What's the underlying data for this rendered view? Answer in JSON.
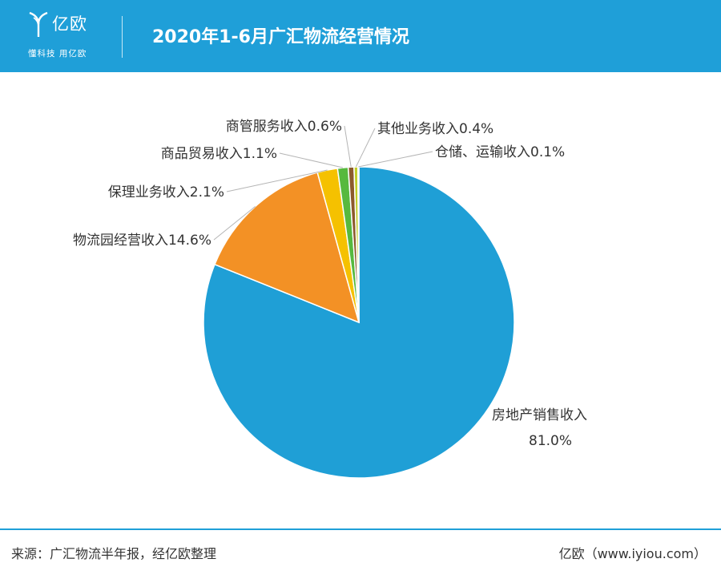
{
  "header": {
    "logo_name": "亿欧",
    "logo_slogan": "懂科技 用亿欧",
    "title": "2020年1-6月广汇物流经营情况"
  },
  "chart_data": {
    "type": "pie",
    "title": "2020年1-6月广汇物流经营情况",
    "start_angle_deg": 0,
    "direction": "clockwise",
    "slices": [
      {
        "name": "房地产销售收入",
        "value": 81.0,
        "label": "81.0%",
        "color": "#1f9fd6"
      },
      {
        "name": "物流园经营收入",
        "value": 14.6,
        "label": "14.6%",
        "color": "#f39125"
      },
      {
        "name": "保理业务收入",
        "value": 2.1,
        "label": "2.1%",
        "color": "#f5c100"
      },
      {
        "name": "商品贸易收入",
        "value": 1.1,
        "label": "1.1%",
        "color": "#57b93e"
      },
      {
        "name": "商管服务收入",
        "value": 0.6,
        "label": "0.6%",
        "color": "#8c5a2b"
      },
      {
        "name": "其他业务收入",
        "value": 0.4,
        "label": "0.4%",
        "color": "#c2ce28"
      },
      {
        "name": "仓储、运输收入",
        "value": 0.1,
        "label": "0.1%",
        "color": "#e05a38"
      }
    ]
  },
  "footer": {
    "source": "来源：广汇物流半年报，经亿欧整理",
    "brand": "亿欧（www.iyiou.com）"
  }
}
